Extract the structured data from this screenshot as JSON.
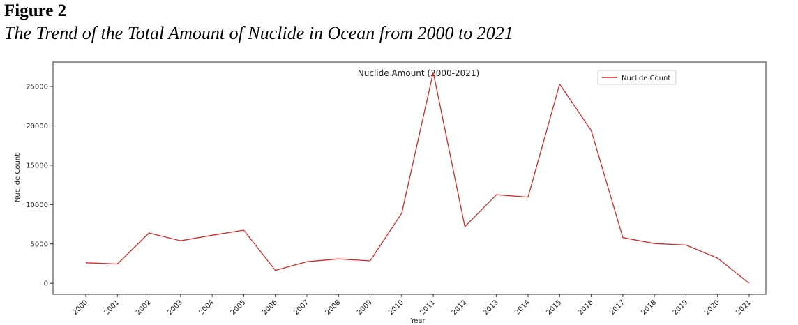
{
  "figure": {
    "label": "Figure 2",
    "caption": "The Trend of the Total Amount of Nuclide in Ocean from 2000 to 2021"
  },
  "chart_data": {
    "type": "line",
    "title": "Nuclide Amount (2000-2021)",
    "xlabel": "Year",
    "ylabel": "Nuclide Count",
    "categories": [
      "2000",
      "2001",
      "2002",
      "2003",
      "2004",
      "2005",
      "2006",
      "2007",
      "2008",
      "2009",
      "2010",
      "2011",
      "2012",
      "2013",
      "2014",
      "2015",
      "2016",
      "2017",
      "2018",
      "2019",
      "2020",
      "2021"
    ],
    "series": [
      {
        "name": "Nuclide Count",
        "color": "#d62728",
        "values": [
          2600,
          2450,
          6400,
          5400,
          6100,
          6750,
          1650,
          2750,
          3100,
          2850,
          8900,
          26800,
          7200,
          11250,
          10950,
          25300,
          19400,
          5800,
          5050,
          4850,
          3200,
          0
        ]
      }
    ],
    "yticks": [
      0,
      5000,
      10000,
      15000,
      20000,
      25000
    ],
    "ylim": [
      -1400,
      28100
    ],
    "legend": "top-right",
    "grid": false
  }
}
